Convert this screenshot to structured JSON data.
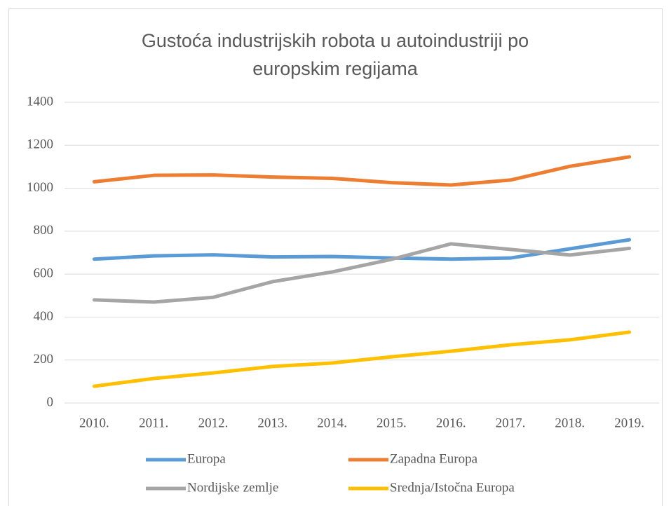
{
  "chart_data": {
    "type": "line",
    "title": [
      "Gustoća industrijskih robota u autoindustriji po",
      "europskim regijama"
    ],
    "categories": [
      "2010.",
      "2011.",
      "2012.",
      "2013.",
      "2014.",
      "2015.",
      "2016.",
      "2017.",
      "2018.",
      "2019."
    ],
    "series": [
      {
        "name": "Europa",
        "color": "#5b9bd5",
        "values": [
          670,
          685,
          690,
          680,
          682,
          675,
          670,
          675,
          718,
          760
        ]
      },
      {
        "name": "Zapadna Europa",
        "color": "#ed7d31",
        "values": [
          1030,
          1060,
          1062,
          1052,
          1046,
          1026,
          1015,
          1038,
          1102,
          1146
        ]
      },
      {
        "name": "Nordijske zemlje",
        "color": "#a5a5a5",
        "values": [
          480,
          470,
          492,
          565,
          610,
          669,
          741,
          715,
          689,
          720
        ]
      },
      {
        "name": "Srednja/Istočna Europa",
        "color": "#ffc000",
        "values": [
          78,
          114,
          140,
          170,
          186,
          215,
          241,
          271,
          294,
          330
        ]
      }
    ],
    "ylim": [
      0,
      1400
    ],
    "yticks": [
      0,
      200,
      400,
      600,
      800,
      1000,
      1200,
      1400
    ],
    "grid": true,
    "legend": "bottom"
  }
}
